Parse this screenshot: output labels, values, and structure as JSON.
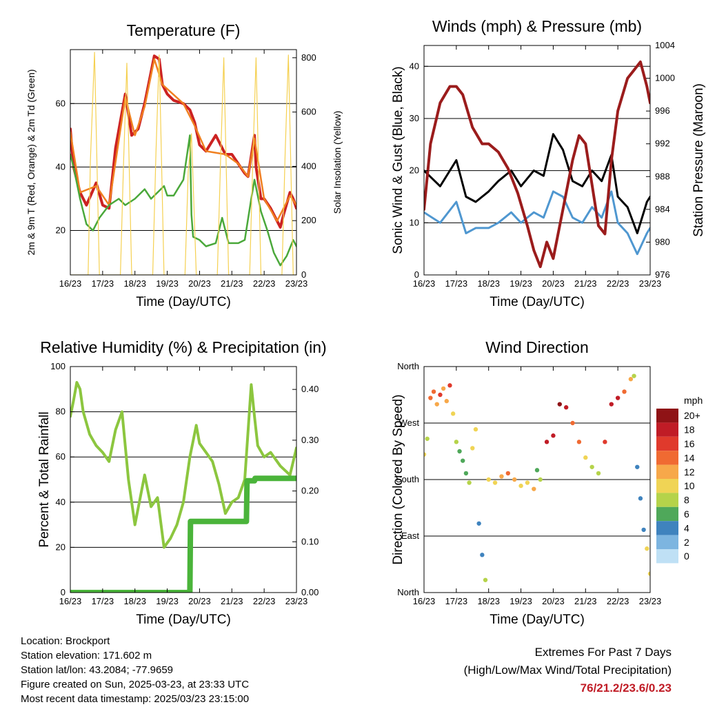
{
  "x_tick_labels": [
    "16/23",
    "17/23",
    "18/23",
    "19/23",
    "20/23",
    "21/23",
    "22/23",
    "23/23"
  ],
  "chart_data": [
    {
      "type": "line",
      "title": "Temperature (F)",
      "xlabel": "Time (Day/UTC)",
      "ylabel": "2m & 9m T (Red, Orange) & 2m Td (Green)",
      "y2label": "Solar Insolation (Yellow)",
      "ylim": [
        6,
        77
      ],
      "y2lim": [
        0,
        830
      ],
      "yticks": [
        20,
        40,
        60
      ],
      "y2ticks": [
        0,
        200,
        400,
        600,
        800
      ],
      "grid": true,
      "series": [
        {
          "name": "2m T",
          "color": "#cc2222",
          "x": [
            16.0,
            16.1,
            16.3,
            16.5,
            16.8,
            17.0,
            17.2,
            17.4,
            17.7,
            17.9,
            18.0,
            18.1,
            18.3,
            18.6,
            18.75,
            18.85,
            19.0,
            19.2,
            19.5,
            19.7,
            19.85,
            20.0,
            20.2,
            20.5,
            20.8,
            21.0,
            21.2,
            21.4,
            21.5,
            21.7,
            21.75,
            21.9,
            22.0,
            22.2,
            22.4,
            22.5,
            22.6,
            22.8,
            22.9,
            23.0
          ],
          "values": [
            52,
            40,
            32,
            28,
            35,
            28,
            27,
            46,
            63,
            50,
            51,
            52,
            60,
            75,
            74,
            66,
            63,
            61,
            60,
            58,
            54,
            47,
            45,
            50,
            44,
            44,
            41,
            38,
            37,
            50,
            40,
            30,
            30,
            27,
            23,
            21,
            25,
            32,
            30,
            27
          ]
        },
        {
          "name": "9m T",
          "color": "#f08020",
          "x": [
            16.0,
            16.3,
            16.8,
            17.2,
            17.7,
            18.0,
            18.3,
            18.6,
            18.85,
            19.5,
            19.85,
            20.2,
            20.8,
            21.2,
            21.5,
            21.7,
            22.0,
            22.4,
            22.8,
            23.0
          ],
          "values": [
            51,
            32,
            34,
            28,
            62,
            50,
            59,
            74,
            66,
            60,
            53,
            45,
            44,
            41,
            37,
            49,
            30,
            23,
            31,
            28
          ]
        },
        {
          "name": "2m Td",
          "color": "#4aa83a",
          "x": [
            16.0,
            16.1,
            16.3,
            16.5,
            16.7,
            16.9,
            17.2,
            17.5,
            17.7,
            18.0,
            18.3,
            18.5,
            18.7,
            18.9,
            19.0,
            19.2,
            19.5,
            19.7,
            19.75,
            19.8,
            20.0,
            20.2,
            20.5,
            20.7,
            20.9,
            21.2,
            21.4,
            21.6,
            21.7,
            21.9,
            22.1,
            22.3,
            22.5,
            22.7,
            22.9,
            23.0
          ],
          "values": [
            44,
            40,
            30,
            22,
            20,
            24,
            28,
            30,
            28,
            30,
            33,
            30,
            32,
            34,
            31,
            31,
            36,
            50,
            25,
            18,
            17,
            15,
            16,
            24,
            16,
            16,
            17,
            30,
            36,
            26,
            20,
            13,
            9,
            12,
            17,
            15
          ]
        },
        {
          "name": "Solar Insolation",
          "axis": "right",
          "color": "#f5d050",
          "x": [
            16.0,
            16.55,
            16.62,
            16.75,
            16.9,
            17.55,
            17.65,
            17.75,
            17.9,
            18.55,
            18.65,
            18.75,
            18.9,
            19.55,
            19.65,
            19.75,
            19.9,
            20.55,
            20.65,
            20.75,
            20.9,
            21.55,
            21.65,
            21.75,
            21.9,
            22.55,
            22.65,
            22.75,
            22.9,
            23.0
          ],
          "values": [
            0,
            0,
            420,
            820,
            0,
            0,
            420,
            780,
            0,
            0,
            450,
            810,
            0,
            0,
            380,
            520,
            0,
            0,
            420,
            800,
            0,
            0,
            420,
            800,
            0,
            0,
            450,
            810,
            0,
            0
          ]
        }
      ]
    },
    {
      "type": "line",
      "title": "Winds (mph) & Pressure (mb)",
      "xlabel": "Time (Day/UTC)",
      "ylabel": "Sonic Wind & Gust (Blue, Black)",
      "y2label": "Station Pressure (Maroon)",
      "ylim": [
        0,
        44
      ],
      "y2lim": [
        976,
        1004
      ],
      "yticks": [
        0,
        10,
        20,
        30,
        40
      ],
      "y2ticks": [
        976,
        980,
        984,
        988,
        992,
        996,
        1000,
        1004
      ],
      "grid": true,
      "series": [
        {
          "name": "Gust",
          "color": "#000000",
          "x": [
            16.0,
            16.5,
            17.0,
            17.3,
            17.6,
            18.0,
            18.3,
            18.7,
            19.0,
            19.4,
            19.7,
            20.0,
            20.3,
            20.6,
            20.9,
            21.2,
            21.5,
            21.8,
            22.0,
            22.3,
            22.6,
            22.9,
            23.0
          ],
          "values": [
            20,
            17,
            22,
            15,
            14,
            16,
            18,
            20,
            17,
            20,
            19,
            27,
            24,
            18,
            17,
            20,
            18,
            23,
            15,
            13,
            8,
            14,
            15
          ]
        },
        {
          "name": "Sonic Wind",
          "color": "#4f97d0",
          "x": [
            16.0,
            16.5,
            17.0,
            17.3,
            17.6,
            18.0,
            18.3,
            18.7,
            19.0,
            19.4,
            19.7,
            20.0,
            20.3,
            20.6,
            20.9,
            21.2,
            21.5,
            21.8,
            22.0,
            22.3,
            22.6,
            22.9,
            23.0
          ],
          "values": [
            12,
            10,
            14,
            8,
            9,
            9,
            10,
            12,
            10,
            12,
            11,
            16,
            15,
            11,
            10,
            13,
            11,
            16,
            10,
            8,
            4,
            8,
            9
          ]
        },
        {
          "name": "Station Pressure",
          "axis": "right",
          "color": "#9b1c1c",
          "x": [
            16.0,
            16.2,
            16.5,
            16.8,
            17.0,
            17.2,
            17.5,
            17.8,
            18.0,
            18.3,
            18.6,
            18.9,
            19.2,
            19.4,
            19.6,
            19.8,
            20.0,
            20.3,
            20.6,
            20.8,
            21.0,
            21.2,
            21.4,
            21.6,
            21.8,
            22.0,
            22.3,
            22.5,
            22.7,
            22.9,
            23.0
          ],
          "values": [
            984,
            992,
            997,
            999,
            999,
            998,
            994,
            992,
            992,
            991,
            989,
            986,
            982,
            979,
            977,
            980,
            978,
            984,
            990,
            993,
            992,
            987,
            982,
            981,
            990,
            996,
            1000,
            1001,
            1002,
            999,
            997
          ]
        }
      ]
    },
    {
      "type": "line",
      "title": "Relative Humidity (%) & Precipitation (in)",
      "xlabel": "Time (Day/UTC)",
      "ylabel": "Percent & Total Rainfall",
      "ylim": [
        0,
        100
      ],
      "y2lim": [
        0,
        0.445
      ],
      "yticks": [
        0,
        20,
        40,
        60,
        80,
        100
      ],
      "y2ticks": [
        0.0,
        0.1,
        0.2,
        0.3,
        0.4
      ],
      "y2ticklabels": [
        "0.00",
        "0.10",
        "0.20",
        "0.30",
        "0.40"
      ],
      "grid": true,
      "series": [
        {
          "name": "Relative Humidity",
          "color": "#8cc63f",
          "x": [
            16.0,
            16.1,
            16.2,
            16.3,
            16.4,
            16.6,
            16.8,
            17.0,
            17.2,
            17.4,
            17.6,
            17.8,
            18.0,
            18.3,
            18.5,
            18.7,
            18.9,
            19.1,
            19.3,
            19.5,
            19.7,
            19.9,
            20.0,
            20.2,
            20.4,
            20.6,
            20.8,
            21.0,
            21.2,
            21.4,
            21.6,
            21.7,
            21.8,
            22.0,
            22.2,
            22.5,
            22.8,
            23.0
          ],
          "values": [
            78,
            85,
            93,
            90,
            80,
            70,
            65,
            62,
            58,
            72,
            80,
            50,
            30,
            52,
            38,
            42,
            20,
            24,
            30,
            40,
            60,
            74,
            66,
            62,
            58,
            48,
            35,
            40,
            42,
            50,
            92,
            78,
            65,
            60,
            62,
            56,
            52,
            64
          ]
        },
        {
          "name": "Total Precipitation",
          "axis": "right",
          "color": "#4ab43a",
          "x": [
            16.0,
            18.0,
            19.45,
            19.7,
            19.72,
            20.0,
            21.2,
            21.45,
            21.47,
            21.7,
            21.72,
            23.0
          ],
          "values": [
            0.0,
            0.0,
            0.0,
            0.0,
            0.14,
            0.14,
            0.14,
            0.14,
            0.22,
            0.22,
            0.225,
            0.225
          ]
        }
      ]
    },
    {
      "type": "scatter",
      "title": "Wind Direction",
      "xlabel": "Time (Day/UTC)",
      "ylabel": "Direction (Colored By Speed)",
      "ylim": [
        0,
        360
      ],
      "yticks": [
        0,
        90,
        180,
        270,
        360
      ],
      "yticklabels": [
        "North",
        "East",
        "South",
        "West",
        "North"
      ],
      "grid": true,
      "legend": "right",
      "colorbar_title": "mph",
      "colorbar_labels": [
        "20+",
        "18",
        "16",
        "14",
        "12",
        "10",
        "8",
        "6",
        "4",
        "2",
        "0"
      ],
      "colorbar_colors": [
        "#8f1316",
        "#c01c26",
        "#e03a2c",
        "#f06a32",
        "#f7a84a",
        "#f0d455",
        "#b5d34a",
        "#4fa85a",
        "#3f83be",
        "#7db5e0",
        "#bfe0f5"
      ],
      "points": [
        {
          "x": 16.0,
          "y": 220,
          "s": 10
        },
        {
          "x": 16.1,
          "y": 245,
          "s": 8
        },
        {
          "x": 16.2,
          "y": 310,
          "s": 13
        },
        {
          "x": 16.3,
          "y": 320,
          "s": 14
        },
        {
          "x": 16.4,
          "y": 300,
          "s": 12
        },
        {
          "x": 16.5,
          "y": 315,
          "s": 15
        },
        {
          "x": 16.6,
          "y": 325,
          "s": 12
        },
        {
          "x": 16.7,
          "y": 305,
          "s": 11
        },
        {
          "x": 16.8,
          "y": 330,
          "s": 16
        },
        {
          "x": 16.9,
          "y": 285,
          "s": 9
        },
        {
          "x": 17.0,
          "y": 240,
          "s": 7
        },
        {
          "x": 17.1,
          "y": 225,
          "s": 6
        },
        {
          "x": 17.2,
          "y": 210,
          "s": 6
        },
        {
          "x": 17.3,
          "y": 190,
          "s": 5
        },
        {
          "x": 17.4,
          "y": 175,
          "s": 7
        },
        {
          "x": 17.5,
          "y": 230,
          "s": 9
        },
        {
          "x": 17.6,
          "y": 260,
          "s": 10
        },
        {
          "x": 17.7,
          "y": 110,
          "s": 4
        },
        {
          "x": 17.8,
          "y": 60,
          "s": 4
        },
        {
          "x": 17.9,
          "y": 20,
          "s": 7
        },
        {
          "x": 18.0,
          "y": 180,
          "s": 9
        },
        {
          "x": 18.2,
          "y": 175,
          "s": 10
        },
        {
          "x": 18.4,
          "y": 185,
          "s": 12
        },
        {
          "x": 18.6,
          "y": 190,
          "s": 13
        },
        {
          "x": 18.8,
          "y": 180,
          "s": 11
        },
        {
          "x": 19.0,
          "y": 170,
          "s": 10
        },
        {
          "x": 19.2,
          "y": 175,
          "s": 9
        },
        {
          "x": 19.4,
          "y": 165,
          "s": 12
        },
        {
          "x": 19.5,
          "y": 195,
          "s": 6
        },
        {
          "x": 19.6,
          "y": 180,
          "s": 7
        },
        {
          "x": 19.8,
          "y": 240,
          "s": 17
        },
        {
          "x": 20.0,
          "y": 250,
          "s": 18
        },
        {
          "x": 20.2,
          "y": 300,
          "s": 20
        },
        {
          "x": 20.4,
          "y": 295,
          "s": 17
        },
        {
          "x": 20.6,
          "y": 270,
          "s": 14
        },
        {
          "x": 20.8,
          "y": 240,
          "s": 13
        },
        {
          "x": 21.0,
          "y": 215,
          "s": 9
        },
        {
          "x": 21.2,
          "y": 200,
          "s": 8
        },
        {
          "x": 21.4,
          "y": 190,
          "s": 7
        },
        {
          "x": 21.6,
          "y": 240,
          "s": 15
        },
        {
          "x": 21.8,
          "y": 300,
          "s": 17
        },
        {
          "x": 22.0,
          "y": 310,
          "s": 18
        },
        {
          "x": 22.2,
          "y": 320,
          "s": 14
        },
        {
          "x": 22.4,
          "y": 340,
          "s": 11
        },
        {
          "x": 22.5,
          "y": 345,
          "s": 8
        },
        {
          "x": 22.6,
          "y": 200,
          "s": 4
        },
        {
          "x": 22.7,
          "y": 150,
          "s": 3
        },
        {
          "x": 22.8,
          "y": 100,
          "s": 4
        },
        {
          "x": 22.9,
          "y": 70,
          "s": 10
        },
        {
          "x": 23.0,
          "y": 30,
          "s": 9
        }
      ]
    }
  ],
  "station": {
    "location": "Location: Brockport",
    "elevation": "Station elevation: 171.602 m",
    "latlon": "Station lat/lon: 43.2084; -77.9659",
    "created": "Figure created on Sun, 2025-03-23, at 23:33 UTC",
    "recent": "Most recent data timestamp: 2025/03/23 23:15:00"
  },
  "extremes": {
    "title": "Extremes For Past 7 Days",
    "subtitle": "(High/Low/Max Wind/Total Precipitation)",
    "values": "76/21.2/23.6/0.23"
  }
}
